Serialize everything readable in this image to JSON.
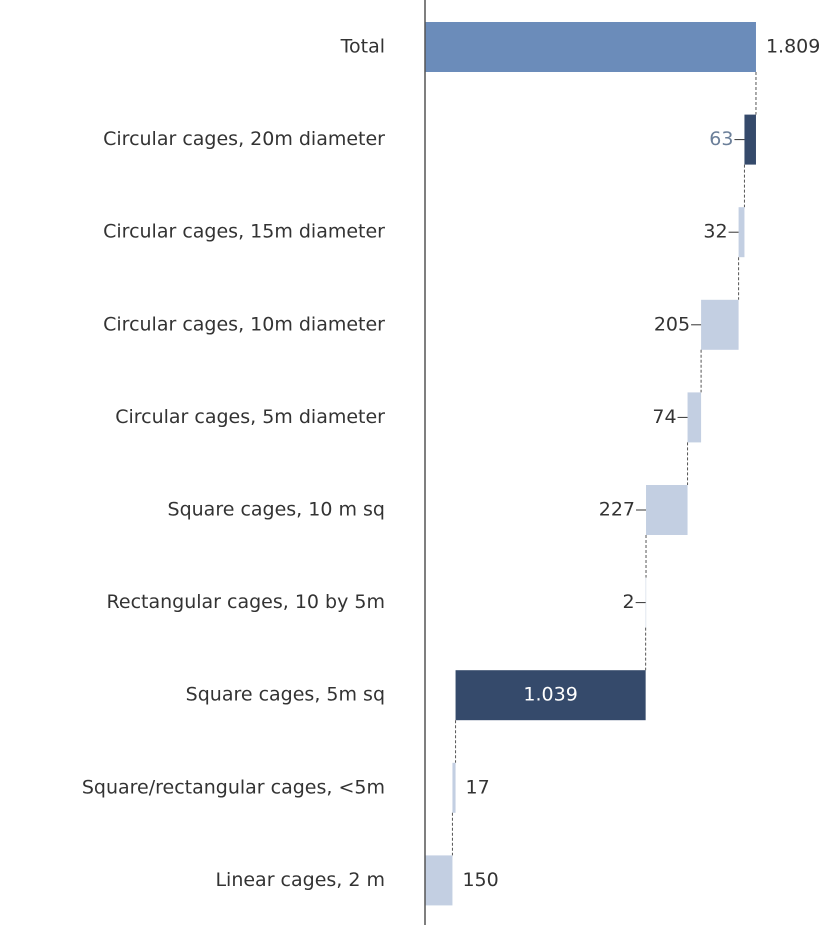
{
  "chart_data": {
    "type": "waterfall",
    "orientation": "horizontal",
    "categories": [
      "Total",
      "Circular cages, 20m diameter",
      "Circular cages, 15m diameter",
      "Circular cages, 10m diameter",
      "Circular cages, 5m diameter",
      "Square cages, 10 m sq",
      "Rectangular cages,  10 by 5m",
      "Square cages, 5m sq",
      "Square/rectangular cages, <5m",
      "Linear cages, 2 m"
    ],
    "measure": [
      "total",
      "relative",
      "relative",
      "relative",
      "relative",
      "relative",
      "relative",
      "relative",
      "relative",
      "relative"
    ],
    "values": [
      1809,
      63,
      32,
      205,
      74,
      227,
      2,
      1039,
      17,
      150
    ],
    "value_labels": [
      "1.809",
      "63",
      "32",
      "205",
      "74",
      "227",
      "2",
      "1.039",
      "17",
      "150"
    ],
    "colors": [
      "#6b8cba",
      "#354a6b",
      "#c3cfe2",
      "#c3cfe2",
      "#c3cfe2",
      "#c3cfe2",
      "#c3cfe2",
      "#354a6b",
      "#c3cfe2",
      "#c3cfe2"
    ],
    "label_colors": [
      "#333333",
      "#6b7f99",
      "#333333",
      "#333333",
      "#333333",
      "#333333",
      "#333333",
      "#ffffff",
      "#333333",
      "#333333"
    ],
    "xlim": [
      0,
      2230
    ]
  }
}
